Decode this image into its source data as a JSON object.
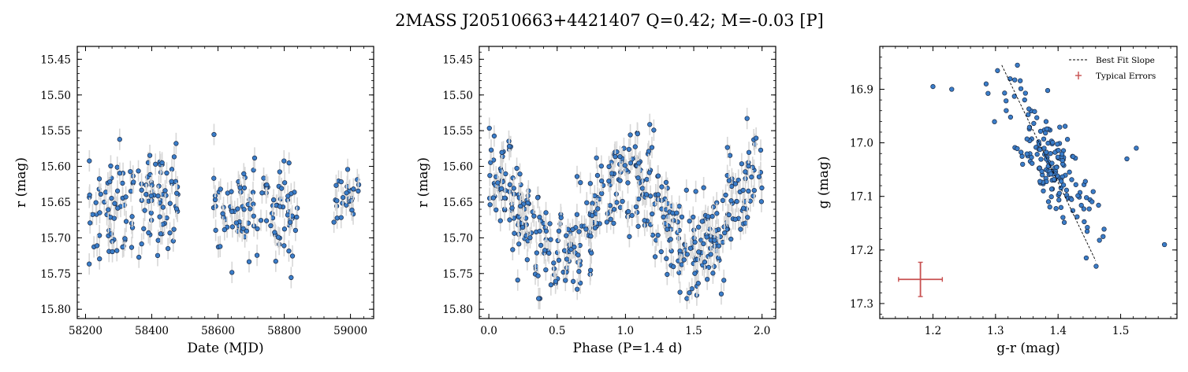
{
  "figure": {
    "title": "2MASS J20510663+4421407  Q=0.42; M=-0.03 [P]"
  },
  "chart_data": [
    {
      "type": "scatter",
      "name": "light-curve",
      "xlabel": "Date (MJD)",
      "ylabel": "r (mag)",
      "xlim": [
        58175,
        59070
      ],
      "ylim": [
        15.813,
        15.432
      ],
      "y_inverted": true,
      "xticks": [
        58200,
        58400,
        58600,
        58800,
        59000
      ],
      "yticks": [
        15.45,
        15.5,
        15.55,
        15.6,
        15.65,
        15.7,
        15.75,
        15.8
      ],
      "yerr": 0.015,
      "color": "#3a7dc9",
      "segments": [
        {
          "x0": 58210,
          "x1": 58480,
          "yc": 15.655,
          "ys": 0.055,
          "n": 130
        },
        {
          "x0": 58585,
          "x1": 58840,
          "yc": 15.665,
          "ys": 0.045,
          "n": 110
        },
        {
          "x0": 58950,
          "x1": 59030,
          "yc": 15.64,
          "ys": 0.02,
          "n": 28
        }
      ],
      "grid": false
    },
    {
      "type": "scatter",
      "name": "phased",
      "xlabel": "Phase (P=1.4 d)",
      "ylabel": "r (mag)",
      "xlim": [
        -0.07,
        2.1
      ],
      "ylim": [
        15.813,
        15.432
      ],
      "y_inverted": true,
      "xticks": [
        0.0,
        0.5,
        1.0,
        1.5,
        2.0
      ],
      "yticks": [
        15.45,
        15.5,
        15.55,
        15.6,
        15.65,
        15.7,
        15.75,
        15.8
      ],
      "period_days": 1.4,
      "model": {
        "mean": 15.665,
        "amp": 0.055,
        "scatter": 0.035
      },
      "n": 480,
      "yerr": 0.015,
      "color": "#3a7dc9",
      "grid": false
    },
    {
      "type": "scatter",
      "name": "color-magnitude",
      "xlabel": "g-r (mag)",
      "ylabel": "g (mag)",
      "xlim": [
        1.115,
        1.59
      ],
      "ylim": [
        17.328,
        16.82
      ],
      "y_inverted": true,
      "xticks": [
        1.2,
        1.3,
        1.4,
        1.5
      ],
      "yticks": [
        16.9,
        17.0,
        17.1,
        17.2,
        17.3
      ],
      "center": {
        "gr": 1.39,
        "g": 17.04
      },
      "n": 170,
      "outliers": [
        {
          "gr": 1.2,
          "g": 16.895
        },
        {
          "gr": 1.23,
          "g": 16.9
        },
        {
          "gr": 1.285,
          "g": 16.89
        },
        {
          "gr": 1.335,
          "g": 16.855
        },
        {
          "gr": 1.57,
          "g": 17.19
        },
        {
          "gr": 1.51,
          "g": 17.03
        },
        {
          "gr": 1.525,
          "g": 17.01
        },
        {
          "gr": 1.445,
          "g": 17.215
        }
      ],
      "fit_line": {
        "x": [
          1.31,
          1.46
        ],
        "y": [
          16.855,
          17.22
        ]
      },
      "typical_error": {
        "x": 1.18,
        "y": 17.255,
        "xerr": 0.035,
        "yerr": 0.032
      },
      "color": "#3a7dc9",
      "error_color": "#c85050",
      "legend": {
        "placement": "top-right",
        "entries": [
          "Best Fit Slope",
          "Typical Errors"
        ]
      },
      "grid": false
    }
  ]
}
